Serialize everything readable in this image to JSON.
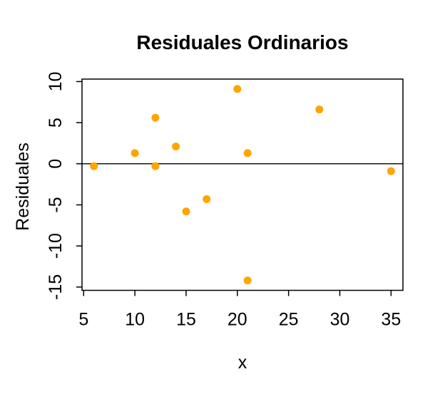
{
  "chart_data": {
    "type": "scatter",
    "title": "Residuales Ordinarios",
    "xlabel": "x",
    "ylabel": "Residuales",
    "xlim": [
      4.84,
      36.16
    ],
    "ylim": [
      -15.4,
      10.3
    ],
    "x_ticks": [
      5,
      10,
      15,
      20,
      25,
      30,
      35
    ],
    "y_ticks": [
      10,
      5,
      0,
      -5,
      -10,
      -15
    ],
    "grid": false,
    "legend": null,
    "point_color": "#FFA500",
    "axis_color": "#000000",
    "reference_line_y": 0,
    "points": [
      {
        "x": 6,
        "y": -0.3
      },
      {
        "x": 10,
        "y": 1.3
      },
      {
        "x": 12,
        "y": 5.6
      },
      {
        "x": 12,
        "y": -0.3
      },
      {
        "x": 14,
        "y": 2.1
      },
      {
        "x": 15,
        "y": -5.8
      },
      {
        "x": 17,
        "y": -4.3
      },
      {
        "x": 20,
        "y": 9.1
      },
      {
        "x": 21,
        "y": 1.3
      },
      {
        "x": 21,
        "y": -14.2
      },
      {
        "x": 28,
        "y": 6.6
      },
      {
        "x": 35,
        "y": -0.9
      }
    ]
  }
}
